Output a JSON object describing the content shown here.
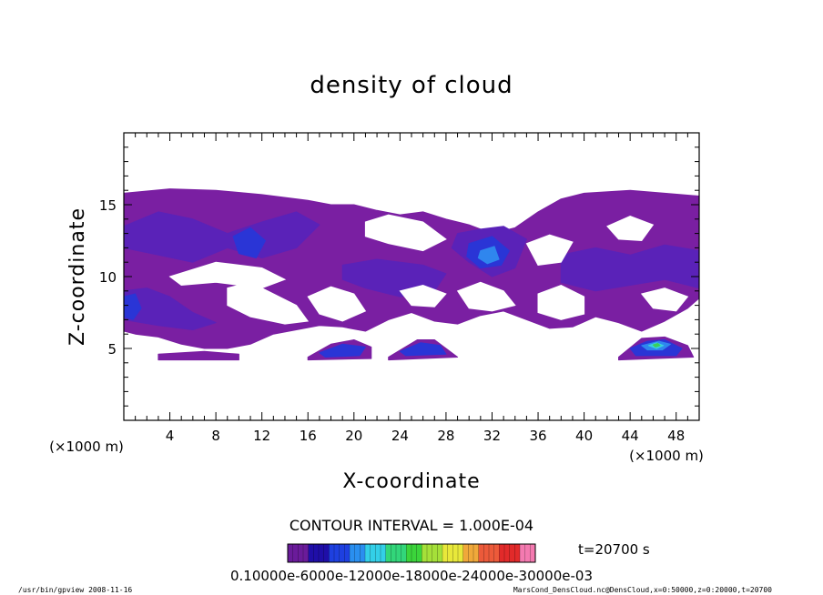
{
  "chart_data": {
    "type": "contour",
    "title": "density of cloud",
    "xlabel": "X-coordinate",
    "ylabel": "Z-coordinate",
    "x_unit_left": "(×1000 m)",
    "x_unit_right": "(×1000 m)",
    "xlim": [
      0,
      50
    ],
    "ylim": [
      0,
      20
    ],
    "x_ticks": [
      "4",
      "8",
      "12",
      "16",
      "20",
      "24",
      "28",
      "32",
      "36",
      "40",
      "44",
      "48"
    ],
    "x_tick_values": [
      4,
      8,
      12,
      16,
      20,
      24,
      28,
      32,
      36,
      40,
      44,
      48
    ],
    "y_ticks": [
      "5",
      "10",
      "15"
    ],
    "y_tick_values": [
      5,
      10,
      15
    ],
    "contour_interval_text": "CONTOUR INTERVAL = 1.000E-04",
    "time_text": "t=20700 s",
    "colorbar_labels_text": "0.10000e-6000e-12000e-18000e-24000e-30000e-03",
    "colorbar_levels": [
      0.0001,
      0.0006,
      0.0012,
      0.0018,
      0.0024,
      0.003
    ],
    "colorbar_colors": [
      "#6a1b9a",
      "#1f0ea8",
      "#1e40e0",
      "#2a8ff0",
      "#33cfe8",
      "#32d67a",
      "#3bd43b",
      "#a5e039",
      "#e8e83a",
      "#f0a83a",
      "#ec5a3a",
      "#e22a2a",
      "#f47ab0"
    ],
    "cloud_colors": {
      "base": "#7a1fa2",
      "mid": "#5a22b8",
      "dense": "#2a35d6",
      "core": "#2f86ee",
      "peak": "#39d0e0",
      "green": "#3bcf5a"
    },
    "regions": [
      {
        "level": "base",
        "points": [
          [
            0,
            15.8
          ],
          [
            4,
            16.1
          ],
          [
            8,
            16.0
          ],
          [
            12,
            15.7
          ],
          [
            16,
            15.3
          ],
          [
            18,
            15.0
          ],
          [
            20,
            15.0
          ],
          [
            22,
            14.6
          ],
          [
            24,
            14.3
          ],
          [
            26,
            14.5
          ],
          [
            28,
            14.0
          ],
          [
            30,
            13.6
          ],
          [
            32,
            13.0
          ],
          [
            34,
            13.4
          ],
          [
            36,
            14.5
          ],
          [
            38,
            15.4
          ],
          [
            40,
            15.8
          ],
          [
            44,
            16.0
          ],
          [
            47,
            15.8
          ],
          [
            50,
            15.6
          ],
          [
            50,
            8.5
          ],
          [
            49,
            7.8
          ],
          [
            47,
            6.9
          ],
          [
            45,
            6.2
          ],
          [
            43,
            6.8
          ],
          [
            41,
            7.2
          ],
          [
            39,
            6.5
          ],
          [
            37,
            6.4
          ],
          [
            35,
            7.0
          ],
          [
            33,
            7.6
          ],
          [
            31,
            7.3
          ],
          [
            29,
            6.7
          ],
          [
            27,
            6.9
          ],
          [
            25,
            7.5
          ],
          [
            23,
            7.0
          ],
          [
            21,
            6.2
          ],
          [
            19,
            6.5
          ],
          [
            17,
            6.6
          ],
          [
            15,
            6.3
          ],
          [
            13,
            6.0
          ],
          [
            11,
            5.3
          ],
          [
            9,
            5.0
          ],
          [
            7,
            5.0
          ],
          [
            5,
            5.3
          ],
          [
            3,
            5.8
          ],
          [
            1,
            6.0
          ],
          [
            0,
            6.2
          ]
        ]
      },
      {
        "level": "base",
        "points": [
          [
            16,
            4.4
          ],
          [
            18,
            5.3
          ],
          [
            20,
            5.6
          ],
          [
            21.5,
            5.1
          ],
          [
            21.5,
            4.3
          ],
          [
            16,
            4.2
          ]
        ]
      },
      {
        "level": "base",
        "points": [
          [
            23,
            4.4
          ],
          [
            25.5,
            5.6
          ],
          [
            27,
            5.6
          ],
          [
            29,
            4.4
          ],
          [
            23,
            4.2
          ]
        ]
      },
      {
        "level": "base",
        "points": [
          [
            43,
            4.4
          ],
          [
            45,
            5.7
          ],
          [
            47,
            5.8
          ],
          [
            49,
            5.2
          ],
          [
            49.5,
            4.4
          ],
          [
            43,
            4.2
          ]
        ]
      },
      {
        "level": "base",
        "points": [
          [
            3,
            4.6
          ],
          [
            7,
            4.8
          ],
          [
            10,
            4.6
          ],
          [
            10,
            4.2
          ],
          [
            3,
            4.2
          ]
        ]
      },
      {
        "level": "mid",
        "points": [
          [
            0,
            13.5
          ],
          [
            3,
            14.5
          ],
          [
            6,
            14.0
          ],
          [
            9,
            13.0
          ],
          [
            12,
            13.8
          ],
          [
            15,
            14.5
          ],
          [
            17,
            13.6
          ],
          [
            15,
            12.0
          ],
          [
            12,
            11.3
          ],
          [
            9,
            12.0
          ],
          [
            6,
            11.0
          ],
          [
            3,
            11.5
          ],
          [
            0,
            12.0
          ]
        ]
      },
      {
        "level": "mid",
        "points": [
          [
            29,
            13.0
          ],
          [
            31,
            13.3
          ],
          [
            33,
            13.5
          ],
          [
            35,
            12.6
          ],
          [
            34,
            10.6
          ],
          [
            32,
            10.0
          ],
          [
            30,
            11.0
          ],
          [
            28.5,
            12.0
          ]
        ]
      },
      {
        "level": "mid",
        "points": [
          [
            38,
            11.5
          ],
          [
            41,
            12.0
          ],
          [
            44,
            11.5
          ],
          [
            47,
            12.2
          ],
          [
            50,
            11.8
          ],
          [
            50,
            9.2
          ],
          [
            47,
            9.8
          ],
          [
            44,
            9.4
          ],
          [
            41,
            9.0
          ],
          [
            38,
            9.6
          ]
        ]
      },
      {
        "level": "mid",
        "points": [
          [
            19,
            10.8
          ],
          [
            22,
            11.2
          ],
          [
            26,
            10.8
          ],
          [
            28,
            10.2
          ],
          [
            27,
            9.0
          ],
          [
            24,
            8.6
          ],
          [
            21,
            9.2
          ],
          [
            19,
            9.8
          ]
        ]
      },
      {
        "level": "mid",
        "points": [
          [
            0,
            9.0
          ],
          [
            2,
            9.2
          ],
          [
            4,
            8.6
          ],
          [
            6,
            7.5
          ],
          [
            8,
            6.8
          ],
          [
            6,
            6.3
          ],
          [
            3,
            6.6
          ],
          [
            0,
            7.0
          ]
        ]
      },
      {
        "level": "dense",
        "points": [
          [
            9.5,
            12.8
          ],
          [
            11,
            13.4
          ],
          [
            12.3,
            12.5
          ],
          [
            11.5,
            11.3
          ],
          [
            10,
            11.6
          ]
        ]
      },
      {
        "level": "dense",
        "points": [
          [
            30,
            12.3
          ],
          [
            32,
            12.8
          ],
          [
            33.5,
            11.8
          ],
          [
            32.8,
            10.8
          ],
          [
            31,
            10.6
          ],
          [
            29.8,
            11.4
          ]
        ]
      },
      {
        "level": "dense",
        "points": [
          [
            0,
            8.6
          ],
          [
            1,
            8.8
          ],
          [
            1.5,
            7.8
          ],
          [
            0.8,
            7.0
          ],
          [
            0,
            7.2
          ]
        ]
      },
      {
        "level": "dense",
        "points": [
          [
            17,
            4.7
          ],
          [
            19,
            5.3
          ],
          [
            21,
            5.1
          ],
          [
            20.5,
            4.5
          ],
          [
            17.5,
            4.4
          ]
        ]
      },
      {
        "level": "dense",
        "points": [
          [
            24,
            4.8
          ],
          [
            25.8,
            5.4
          ],
          [
            27.5,
            5.2
          ],
          [
            28,
            4.6
          ],
          [
            24.5,
            4.5
          ]
        ]
      },
      {
        "level": "dense",
        "points": [
          [
            44,
            5.0
          ],
          [
            45.5,
            5.5
          ],
          [
            47,
            5.6
          ],
          [
            48.5,
            5.0
          ],
          [
            48,
            4.5
          ],
          [
            44.5,
            4.5
          ]
        ]
      },
      {
        "level": "core",
        "points": [
          [
            31,
            11.8
          ],
          [
            32.2,
            12.1
          ],
          [
            32.6,
            11.2
          ],
          [
            31.6,
            10.9
          ],
          [
            30.8,
            11.3
          ]
        ]
      },
      {
        "level": "core",
        "points": [
          [
            45,
            5.2
          ],
          [
            46.5,
            5.5
          ],
          [
            47.5,
            5.3
          ],
          [
            46.8,
            4.9
          ],
          [
            45.5,
            4.9
          ]
        ]
      },
      {
        "level": "peak",
        "points": [
          [
            45.6,
            5.2
          ],
          [
            46.3,
            5.4
          ],
          [
            46.9,
            5.2
          ],
          [
            46.3,
            5.0
          ]
        ]
      },
      {
        "level": "green",
        "points": [
          [
            46.0,
            5.25
          ],
          [
            46.4,
            5.35
          ],
          [
            46.6,
            5.2
          ],
          [
            46.2,
            5.1
          ]
        ]
      }
    ],
    "gaps": [
      {
        "points": [
          [
            4,
            10.0
          ],
          [
            8,
            11.0
          ],
          [
            12,
            10.6
          ],
          [
            14,
            9.8
          ],
          [
            12,
            9.2
          ],
          [
            8,
            9.6
          ],
          [
            5,
            9.4
          ]
        ]
      },
      {
        "points": [
          [
            21,
            13.8
          ],
          [
            23,
            14.3
          ],
          [
            26,
            13.8
          ],
          [
            28,
            12.6
          ],
          [
            26,
            11.8
          ],
          [
            23,
            12.3
          ],
          [
            21,
            12.8
          ]
        ]
      },
      {
        "points": [
          [
            35,
            12.3
          ],
          [
            37,
            12.9
          ],
          [
            39,
            12.4
          ],
          [
            38,
            11.0
          ],
          [
            36,
            10.8
          ]
        ]
      },
      {
        "points": [
          [
            42,
            13.5
          ],
          [
            44,
            14.2
          ],
          [
            46,
            13.6
          ],
          [
            45,
            12.5
          ],
          [
            43,
            12.6
          ]
        ]
      },
      {
        "points": [
          [
            9,
            9.2
          ],
          [
            11,
            9.6
          ],
          [
            13,
            8.8
          ],
          [
            15,
            8.0
          ],
          [
            16,
            6.9
          ],
          [
            14,
            6.7
          ],
          [
            11,
            7.2
          ],
          [
            9,
            8.0
          ]
        ]
      },
      {
        "points": [
          [
            16,
            8.6
          ],
          [
            18,
            9.3
          ],
          [
            20,
            8.8
          ],
          [
            21,
            7.6
          ],
          [
            19,
            6.9
          ],
          [
            17,
            7.4
          ]
        ]
      },
      {
        "points": [
          [
            29,
            9.0
          ],
          [
            31,
            9.6
          ],
          [
            33,
            9.0
          ],
          [
            34,
            8.0
          ],
          [
            32,
            7.6
          ],
          [
            30,
            7.8
          ]
        ]
      },
      {
        "points": [
          [
            36,
            8.8
          ],
          [
            38,
            9.4
          ],
          [
            40,
            8.6
          ],
          [
            40,
            7.4
          ],
          [
            38,
            7.0
          ],
          [
            36,
            7.5
          ]
        ]
      },
      {
        "points": [
          [
            45,
            8.8
          ],
          [
            47,
            9.2
          ],
          [
            49,
            8.6
          ],
          [
            48,
            7.6
          ],
          [
            46,
            7.8
          ]
        ]
      },
      {
        "points": [
          [
            24,
            9.0
          ],
          [
            26,
            9.4
          ],
          [
            28,
            8.8
          ],
          [
            27,
            7.9
          ],
          [
            25,
            8.0
          ]
        ]
      }
    ]
  },
  "footer": {
    "left": "/usr/bin/gpview  2008-11-16",
    "right": "MarsCond_DensCloud.nc@DensCloud,x=0:50000,z=0:20000,t=20700"
  }
}
